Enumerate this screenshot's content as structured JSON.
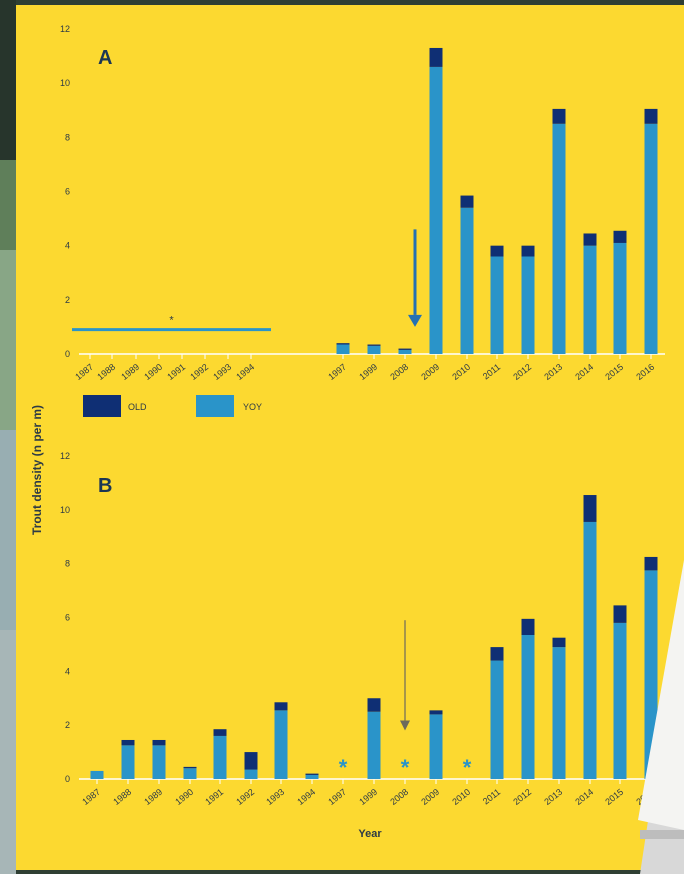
{
  "colors": {
    "panel": "#fcd930",
    "old": "#0f2f74",
    "yoy": "#2a94c9",
    "axis_text": "#2d3a45",
    "grid": "#ffffff",
    "arrow_a": "#2471b3",
    "arrow_b": "#6e6a5c"
  },
  "y_axis_label": "Trout density (n per m)",
  "x_axis_label": "Year",
  "legend": {
    "old_label": "OLD",
    "yoy_label": "YOY"
  },
  "chart_data": [
    {
      "type": "bar",
      "panel_label": "A",
      "stacked": true,
      "categories": [
        "1987",
        "1988",
        "1989",
        "1990",
        "1991",
        "1992",
        "1993",
        "1994",
        "1997",
        "1999",
        "2008",
        "2009",
        "2010",
        "2011",
        "2012",
        "2013",
        "2014",
        "2015",
        "2016"
      ],
      "series": [
        {
          "name": "YOY",
          "values": [
            null,
            null,
            null,
            null,
            null,
            null,
            null,
            null,
            0.35,
            0.3,
            0.15,
            10.6,
            5.4,
            3.6,
            3.6,
            8.5,
            4.0,
            4.1,
            8.5
          ]
        },
        {
          "name": "OLD",
          "values": [
            null,
            null,
            null,
            null,
            null,
            null,
            null,
            null,
            0.05,
            0.05,
            0.05,
            0.7,
            0.45,
            0.4,
            0.4,
            0.55,
            0.45,
            0.45,
            0.55
          ]
        }
      ],
      "annotations": [
        {
          "type": "line",
          "x_from": "1987",
          "x_to": "1994",
          "y": 0.9,
          "label": "*"
        },
        {
          "type": "arrow",
          "at": "2008",
          "y_from": 4.6,
          "y_to": 1.0
        }
      ],
      "ylim": [
        0,
        12
      ],
      "yticks": [
        0,
        2,
        4,
        6,
        8,
        10,
        12
      ],
      "grid": false
    },
    {
      "type": "bar",
      "panel_label": "B",
      "stacked": true,
      "categories": [
        "1987",
        "1988",
        "1989",
        "1990",
        "1991",
        "1992",
        "1993",
        "1994",
        "1997",
        "1999",
        "2008",
        "2009",
        "2010",
        "2011",
        "2012",
        "2013",
        "2014",
        "2015",
        "2016"
      ],
      "series": [
        {
          "name": "YOY",
          "values": [
            0.3,
            1.25,
            1.25,
            0.4,
            1.6,
            0.35,
            2.55,
            0.15,
            null,
            2.5,
            null,
            2.4,
            null,
            4.4,
            5.35,
            4.9,
            9.55,
            5.8,
            7.75
          ]
        },
        {
          "name": "OLD",
          "values": [
            0,
            0.2,
            0.2,
            0.05,
            0.25,
            0.65,
            0.3,
            0.05,
            null,
            0.5,
            null,
            0.15,
            null,
            0.5,
            0.6,
            0.35,
            1.0,
            0.65,
            0.5
          ]
        }
      ],
      "annotations": [
        {
          "type": "asterisk",
          "at": "1997",
          "label": "*"
        },
        {
          "type": "asterisk",
          "at": "2008",
          "label": "*"
        },
        {
          "type": "asterisk",
          "at": "2010",
          "label": "*"
        },
        {
          "type": "arrow",
          "at": "2008",
          "y_from": 5.9,
          "y_to": 1.8
        }
      ],
      "ylim": [
        0,
        12
      ],
      "yticks": [
        0,
        2,
        4,
        6,
        8,
        10,
        12
      ],
      "grid": false
    }
  ]
}
